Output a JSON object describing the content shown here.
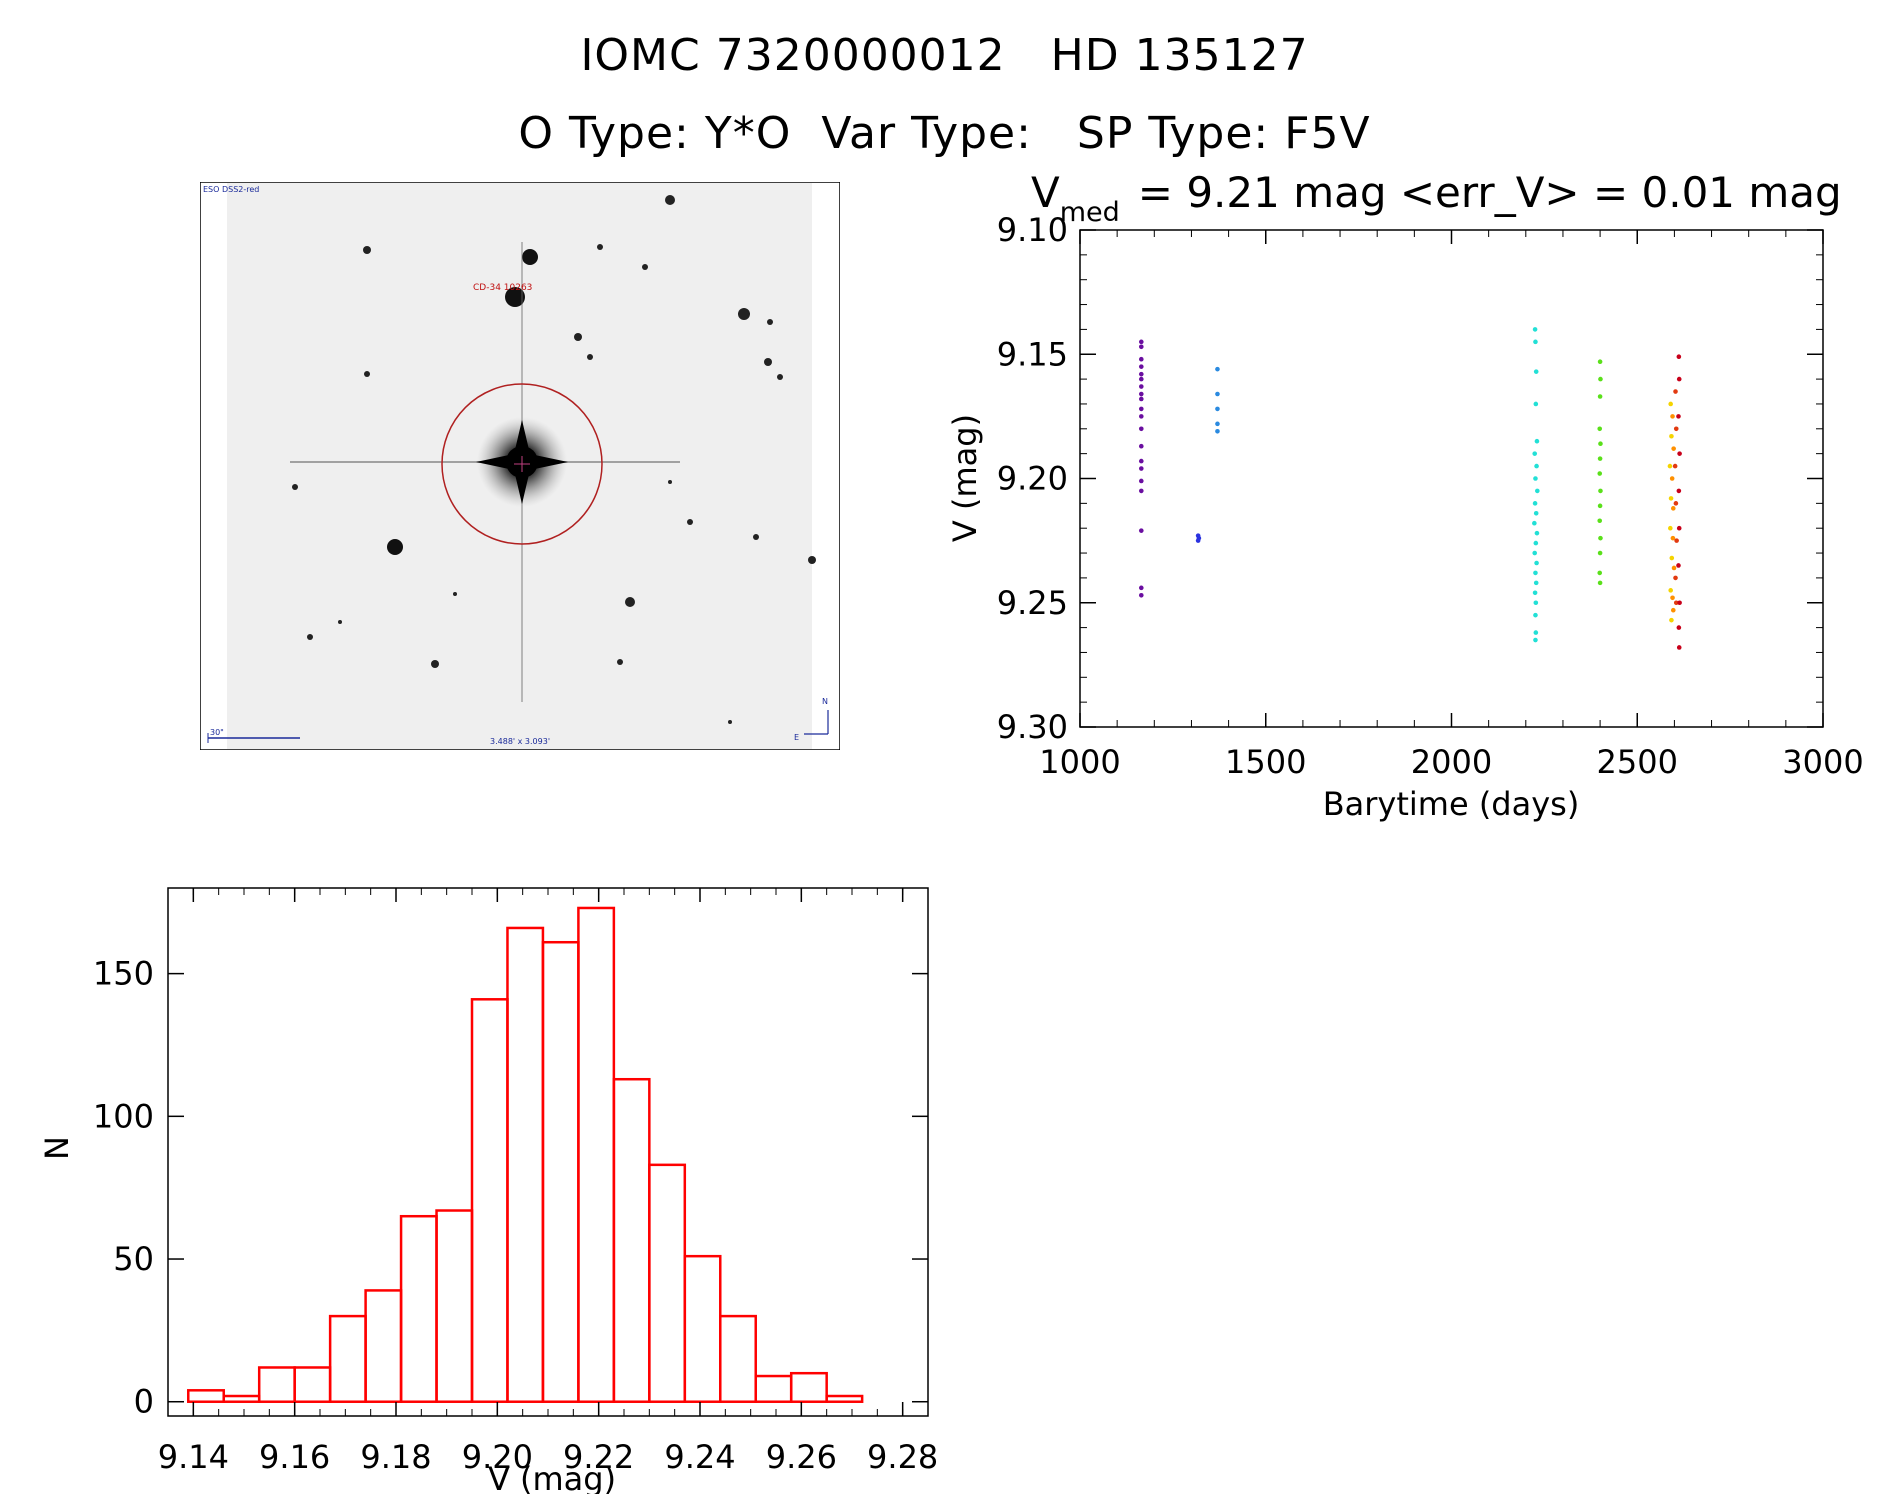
{
  "header": {
    "iomc_id": "IOMC 7320000012",
    "hd_id": "HD 135127",
    "o_type": "O Type: Y*O",
    "var_type": "Var Type:",
    "sp_type": "SP Type: F5V"
  },
  "stamp": {
    "survey_label": "ESO DSS2-red",
    "star_label": "CD-34 10263",
    "scale_label": "30\"",
    "size_label": "3.488' x 3.093'",
    "north_label": "N",
    "east_label": "E"
  },
  "chart_data": [
    {
      "type": "scatter",
      "title_main": "V",
      "title_sub": "med",
      "title_rest": "= 9.21 mag <err_V> = 0.01 mag",
      "xlabel": "Barytime (days)",
      "ylabel": "V (mag)",
      "xlim": [
        1000,
        3000
      ],
      "ylim": [
        9.3,
        9.1
      ],
      "x_ticks": [
        "1000",
        "1500",
        "2000",
        "2500",
        "3000"
      ],
      "y_ticks": [
        "9.10",
        "9.15",
        "9.20",
        "9.25",
        "9.30"
      ],
      "y_inverted": true,
      "grid": false,
      "series": [
        {
          "color": "#6a0ea0",
          "points": [
            [
              1165,
              9.145
            ],
            [
              1165,
              9.147
            ],
            [
              1165,
              9.152
            ],
            [
              1165,
              9.155
            ],
            [
              1165,
              9.158
            ],
            [
              1165,
              9.16
            ],
            [
              1165,
              9.163
            ],
            [
              1165,
              9.166
            ],
            [
              1165,
              9.168
            ],
            [
              1165,
              9.172
            ],
            [
              1165,
              9.175
            ],
            [
              1165,
              9.18
            ],
            [
              1165,
              9.187
            ],
            [
              1165,
              9.193
            ],
            [
              1165,
              9.196
            ],
            [
              1165,
              9.201
            ],
            [
              1165,
              9.205
            ],
            [
              1165,
              9.221
            ],
            [
              1165,
              9.244
            ],
            [
              1165,
              9.247
            ]
          ]
        },
        {
          "color": "#2a32e0",
          "points": [
            [
              1318,
              9.223
            ],
            [
              1318,
              9.225
            ],
            [
              1320,
              9.224
            ]
          ]
        },
        {
          "color": "#2a8ae0",
          "points": [
            [
              1370,
              9.156
            ],
            [
              1370,
              9.166
            ],
            [
              1370,
              9.172
            ],
            [
              1370,
              9.178
            ],
            [
              1370,
              9.181
            ]
          ]
        },
        {
          "color": "#22e0d6",
          "points": [
            [
              2225,
              9.14
            ],
            [
              2226,
              9.145
            ],
            [
              2228,
              9.157
            ],
            [
              2227,
              9.17
            ],
            [
              2230,
              9.185
            ],
            [
              2224,
              9.19
            ],
            [
              2229,
              9.195
            ],
            [
              2226,
              9.2
            ],
            [
              2231,
              9.205
            ],
            [
              2225,
              9.21
            ],
            [
              2228,
              9.214
            ],
            [
              2223,
              9.218
            ],
            [
              2230,
              9.222
            ],
            [
              2227,
              9.226
            ],
            [
              2224,
              9.23
            ],
            [
              2229,
              9.234
            ],
            [
              2226,
              9.238
            ],
            [
              2228,
              9.242
            ],
            [
              2225,
              9.246
            ],
            [
              2227,
              9.25
            ],
            [
              2226,
              9.255
            ],
            [
              2227,
              9.262
            ],
            [
              2226,
              9.265
            ]
          ]
        },
        {
          "color": "#5ae01a",
          "points": [
            [
              2400,
              9.153
            ],
            [
              2401,
              9.16
            ],
            [
              2400,
              9.167
            ],
            [
              2399,
              9.18
            ],
            [
              2401,
              9.186
            ],
            [
              2400,
              9.192
            ],
            [
              2399,
              9.198
            ],
            [
              2401,
              9.205
            ],
            [
              2400,
              9.211
            ],
            [
              2399,
              9.217
            ],
            [
              2401,
              9.224
            ],
            [
              2400,
              9.23
            ],
            [
              2399,
              9.238
            ],
            [
              2400,
              9.242
            ]
          ]
        },
        {
          "color": "#f5d400",
          "points": [
            [
              2590,
              9.17
            ],
            [
              2592,
              9.183
            ],
            [
              2588,
              9.195
            ],
            [
              2591,
              9.208
            ],
            [
              2589,
              9.22
            ],
            [
              2593,
              9.232
            ],
            [
              2590,
              9.245
            ],
            [
              2592,
              9.257
            ]
          ]
        },
        {
          "color": "#ff9000",
          "points": [
            [
              2595,
              9.175
            ],
            [
              2598,
              9.188
            ],
            [
              2594,
              9.2
            ],
            [
              2597,
              9.212
            ],
            [
              2596,
              9.224
            ],
            [
              2599,
              9.236
            ],
            [
              2595,
              9.248
            ],
            [
              2597,
              9.253
            ]
          ]
        },
        {
          "color": "#e23a10",
          "points": [
            [
              2603,
              9.165
            ],
            [
              2605,
              9.18
            ],
            [
              2602,
              9.195
            ],
            [
              2604,
              9.21
            ],
            [
              2606,
              9.225
            ],
            [
              2603,
              9.24
            ],
            [
              2605,
              9.25
            ]
          ]
        },
        {
          "color": "#c8001a",
          "points": [
            [
              2612,
              9.151
            ],
            [
              2613,
              9.16
            ],
            [
              2611,
              9.175
            ],
            [
              2614,
              9.19
            ],
            [
              2612,
              9.205
            ],
            [
              2613,
              9.22
            ],
            [
              2611,
              9.235
            ],
            [
              2614,
              9.25
            ],
            [
              2612,
              9.26
            ],
            [
              2613,
              9.268
            ]
          ]
        }
      ]
    },
    {
      "type": "bar",
      "xlabel": "V (mag)",
      "ylabel": "N",
      "xlim": [
        9.135,
        9.285
      ],
      "ylim": [
        -5,
        180
      ],
      "x_ticks": [
        "9.14",
        "9.16",
        "9.18",
        "9.20",
        "9.22",
        "9.24",
        "9.26",
        "9.28"
      ],
      "y_ticks": [
        "0",
        "50",
        "100",
        "150"
      ],
      "bin_width": 0.007,
      "bin_starts": [
        9.139,
        9.146,
        9.153,
        9.16,
        9.167,
        9.174,
        9.181,
        9.188,
        9.195,
        9.202,
        9.209,
        9.216,
        9.223,
        9.23,
        9.237,
        9.244,
        9.251,
        9.258,
        9.265
      ],
      "values": [
        4,
        2,
        12,
        12,
        30,
        39,
        65,
        67,
        141,
        166,
        161,
        173,
        113,
        83,
        51,
        30,
        9,
        10,
        2
      ],
      "bar_color": "#ff0000",
      "grid": false
    }
  ]
}
